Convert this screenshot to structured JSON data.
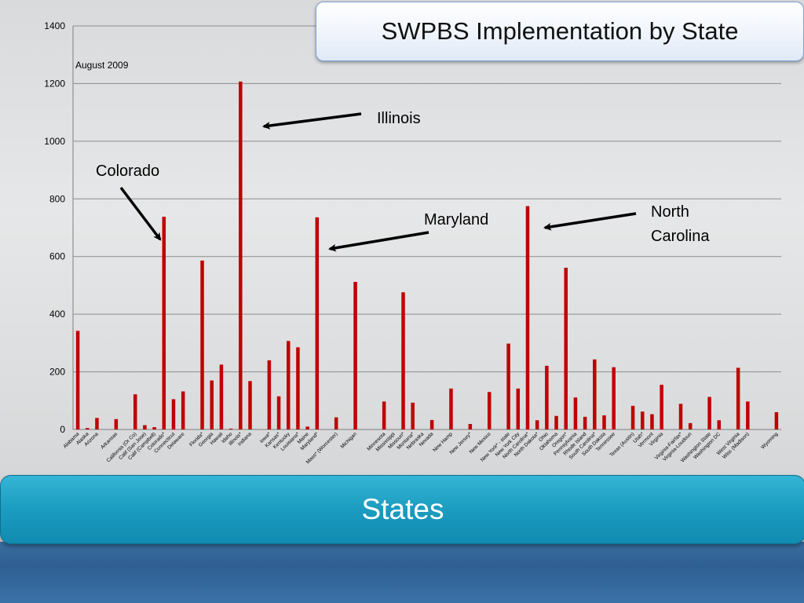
{
  "slide": {
    "title": "SWPBS Implementation by State",
    "footer_label": "States"
  },
  "colors": {
    "bar": "#c00000",
    "grid": "#8c8c8c",
    "arrow": "#000000"
  },
  "annotations": [
    {
      "label": "Illinois",
      "target": "Illinois*"
    },
    {
      "label": "Colorado",
      "target": "Colorado*"
    },
    {
      "label": "Maryland",
      "target": "Maryland*"
    },
    {
      "label": "North Carolina",
      "target": "North Carolina*"
    }
  ],
  "chart_data": {
    "type": "bar",
    "subtitle": "August 2009",
    "ylim": [
      0,
      1400
    ],
    "yticks": [
      0,
      200,
      400,
      600,
      800,
      1000,
      1200,
      1400
    ],
    "grid": true,
    "categories": [
      "Alabama",
      "Alaska",
      "Arizona",
      "",
      "Arkansas",
      "",
      "California (Or Co)",
      "Calif (San Jose)",
      "Calif (Campbell)",
      "Colorado*",
      "Connecticut",
      "Delaware",
      "",
      "Florida*",
      "Georgia",
      "Hawaii",
      "Idaho",
      "Illinois*",
      "Indiana",
      "",
      "Iowa*",
      "Kansas*",
      "Kentucky",
      "Louisiana*",
      "Maine",
      "Maryland*",
      "",
      "Mass* (Worcester)",
      "",
      "Michigan",
      "",
      "",
      "Minnesota",
      "Mississippi",
      "Missouri*",
      "Montana*",
      "Nebraska",
      "Nevada",
      "",
      "New Hamp",
      "",
      "New Jersey*",
      "",
      "New Mexico",
      "",
      "New York* - state",
      "New York City",
      "North Carolina*",
      "North Dakota*",
      "Ohio",
      "Oklahoma",
      "Oregon*",
      "Pennsylvania",
      "Rhode Island",
      "South Carolina*",
      "South Dakota",
      "Tennessee",
      "",
      "Texas (Austin)",
      "Utah*",
      "Vermont",
      "Virginia",
      "",
      "Virginia-Fairfax*",
      "Virginia-Loudoun",
      "",
      "Washington State",
      "Washington DC",
      "",
      "West Virginia",
      "Wisc (Madison)",
      "",
      "",
      "Wyoming"
    ],
    "values": [
      342,
      5,
      40,
      0,
      36,
      0,
      122,
      15,
      8,
      738,
      105,
      132,
      0,
      586,
      170,
      225,
      3,
      1207,
      168,
      0,
      240,
      115,
      307,
      285,
      10,
      736,
      0,
      42,
      0,
      512,
      0,
      0,
      97,
      0,
      476,
      93,
      0,
      33,
      0,
      142,
      0,
      19,
      0,
      130,
      0,
      298,
      142,
      775,
      32,
      221,
      47,
      561,
      111,
      44,
      243,
      49,
      216,
      0,
      82,
      62,
      53,
      155,
      0,
      89,
      22,
      0,
      113,
      32,
      0,
      214,
      97,
      0,
      0,
      60
    ]
  }
}
